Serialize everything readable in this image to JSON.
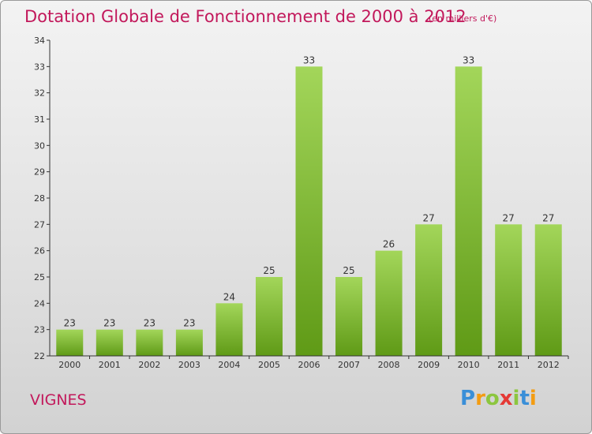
{
  "title": "Dotation Globale de Fonctionnement de 2000 à 2012",
  "subtitle": "(en milliers d'€)",
  "commune": "VIGNES",
  "logo": {
    "text": "Proxiti",
    "letters": [
      {
        "ch": "P",
        "color": "#3a8fd8"
      },
      {
        "ch": "r",
        "color": "#f39c12"
      },
      {
        "ch": "o",
        "color": "#8cc63f"
      },
      {
        "ch": "x",
        "color": "#e53935"
      },
      {
        "ch": "i",
        "color": "#8cc63f"
      },
      {
        "ch": "t",
        "color": "#3a8fd8"
      },
      {
        "ch": "i",
        "color": "#f39c12"
      }
    ]
  },
  "colors": {
    "title": "#c2185b",
    "bar_light": "#a3d65a",
    "bar_dark": "#5f9a16",
    "axis": "#333333"
  },
  "chart_data": {
    "type": "bar",
    "categories": [
      "2000",
      "2001",
      "2002",
      "2003",
      "2004",
      "2005",
      "2006",
      "2007",
      "2008",
      "2009",
      "2010",
      "2011",
      "2012"
    ],
    "values": [
      23,
      23,
      23,
      23,
      24,
      25,
      33,
      25,
      26,
      27,
      33,
      27,
      27
    ],
    "ylim": [
      22,
      34
    ],
    "yticks": [
      22,
      23,
      24,
      25,
      26,
      27,
      28,
      29,
      30,
      31,
      32,
      33,
      34
    ],
    "xlabel": "",
    "ylabel": "",
    "grid": false,
    "data_labels": true
  }
}
